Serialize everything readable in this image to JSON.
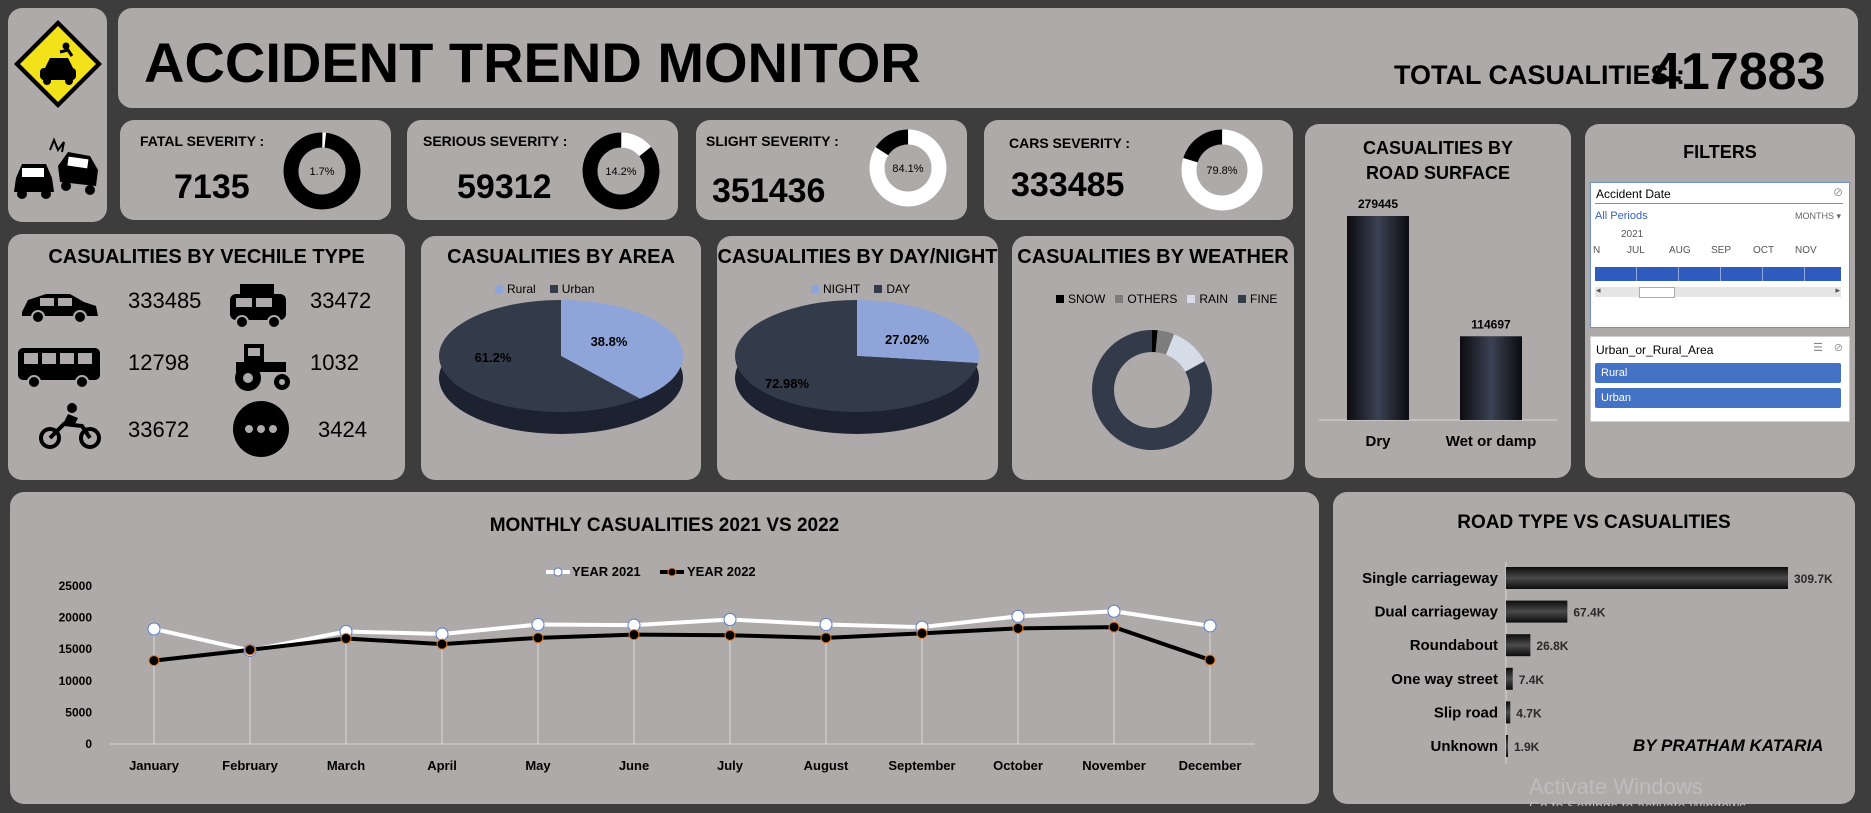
{
  "header": {
    "title": "ACCIDENT TREND MONITOR",
    "total_label": "TOTAL CASUALITIES :",
    "total_value": "417883"
  },
  "kpis": [
    {
      "label": "FATAL SEVERITY :",
      "value": "7135",
      "pct": "1.7%",
      "fraction": 0.017
    },
    {
      "label": "SERIOUS SEVERITY :",
      "value": "59312",
      "pct": "14.2%",
      "fraction": 0.142
    },
    {
      "label": "SLIGHT SEVERITY :",
      "value": "351436",
      "pct": "84.1%",
      "fraction": 0.841
    },
    {
      "label": "CARS SEVERITY :",
      "value": "333485",
      "pct": "79.8%",
      "fraction": 0.798
    }
  ],
  "vehicle": {
    "title": "CASUALITIES BY VECHILE TYPE",
    "items": [
      {
        "icon": "car-icon",
        "value": "333485"
      },
      {
        "icon": "van-icon",
        "value": "33472"
      },
      {
        "icon": "bus-icon",
        "value": "12798"
      },
      {
        "icon": "tractor-icon",
        "value": "1032"
      },
      {
        "icon": "bike-icon",
        "value": "33672"
      },
      {
        "icon": "more-icon",
        "value": "3424"
      }
    ]
  },
  "area": {
    "title": "CASUALITIES BY AREA",
    "legend": [
      "Rural",
      "Urban"
    ],
    "labels": [
      "38.8%",
      "61.2%"
    ]
  },
  "daynight": {
    "title": "CASUALITIES BY DAY/NIGHT",
    "legend": [
      "NIGHT",
      "DAY"
    ],
    "labels": [
      "27.02%",
      "72.98%"
    ]
  },
  "weather": {
    "title": "CASUALITIES BY WEATHER",
    "legend": [
      "SNOW",
      "OTHERS",
      "RAIN",
      "FINE"
    ]
  },
  "surface": {
    "title_line1": "CASUALITIES BY",
    "title_line2": "ROAD SURFACE",
    "labels": [
      "279445",
      "114697"
    ],
    "categories": [
      "Dry",
      "Wet or damp"
    ]
  },
  "filters": {
    "title": "FILTERS",
    "date": {
      "header": "Accident Date",
      "periods": "All Periods",
      "unit": "MONTHS",
      "year": "2021",
      "months": [
        "N",
        "JUL",
        "AUG",
        "SEP",
        "OCT",
        "NOV"
      ]
    },
    "area": {
      "header": "Urban_or_Rural_Area",
      "options": [
        "Rural",
        "Urban"
      ]
    }
  },
  "monthly": {
    "title": "MONTHLY CASUALITIES 2021 VS 2022",
    "legend": [
      "YEAR 2021",
      "YEAR 2022"
    ],
    "yticks": [
      "25000",
      "20000",
      "15000",
      "10000",
      "5000",
      "0"
    ],
    "months": [
      "January",
      "February",
      "March",
      "April",
      "May",
      "June",
      "July",
      "August",
      "September",
      "October",
      "November",
      "December"
    ]
  },
  "roadtype": {
    "title": "ROAD TYPE VS CASUALITIES",
    "categories": [
      "Single carriageway",
      "Dual carriageway",
      "Roundabout",
      "One way street",
      "Slip road",
      "Unknown"
    ],
    "labels": [
      "309.7K",
      "67.4K",
      "26.8K",
      "7.4K",
      "4.7K",
      "1.9K"
    ],
    "author": "BY PRATHAM KATARIA"
  },
  "watermark": {
    "line1": "Activate Windows",
    "line2": "Go to Settings to activate Windows."
  },
  "chart_data": [
    {
      "type": "pie",
      "title": "CASUALITIES BY AREA",
      "categories": [
        "Rural",
        "Urban"
      ],
      "values": [
        38.8,
        61.2
      ],
      "legend": "top"
    },
    {
      "type": "pie",
      "title": "CASUALITIES BY DAY/NIGHT",
      "categories": [
        "NIGHT",
        "DAY"
      ],
      "values": [
        27.02,
        72.98
      ],
      "legend": "top"
    },
    {
      "type": "pie",
      "title": "CASUALITIES BY WEATHER",
      "categories": [
        "SNOW",
        "OTHERS",
        "RAIN",
        "FINE"
      ],
      "values": [
        1.5,
        4.5,
        11,
        83
      ],
      "legend": "top"
    },
    {
      "type": "bar",
      "title": "CASUALITIES BY ROAD SURFACE",
      "categories": [
        "Dry",
        "Wet or damp"
      ],
      "values": [
        279445,
        114697
      ]
    },
    {
      "type": "line",
      "title": "MONTHLY CASUALITIES 2021 VS 2022",
      "categories": [
        "January",
        "February",
        "March",
        "April",
        "May",
        "June",
        "July",
        "August",
        "September",
        "October",
        "November",
        "December"
      ],
      "series": [
        {
          "name": "YEAR 2021",
          "values": [
            18200,
            14800,
            17800,
            17400,
            18900,
            18800,
            19700,
            18900,
            18500,
            20200,
            21000,
            18700
          ]
        },
        {
          "name": "YEAR 2022",
          "values": [
            13200,
            14900,
            16700,
            15800,
            16800,
            17300,
            17200,
            16800,
            17500,
            18300,
            18500,
            13300
          ]
        }
      ],
      "ylim": [
        0,
        25000
      ],
      "legend": "top",
      "grid": false
    },
    {
      "type": "bar",
      "title": "ROAD TYPE VS CASUALITIES",
      "orientation": "horizontal",
      "categories": [
        "Single carriageway",
        "Dual carriageway",
        "Roundabout",
        "One way street",
        "Slip road",
        "Unknown"
      ],
      "values": [
        309700,
        67400,
        26800,
        7400,
        4700,
        1900
      ]
    }
  ]
}
